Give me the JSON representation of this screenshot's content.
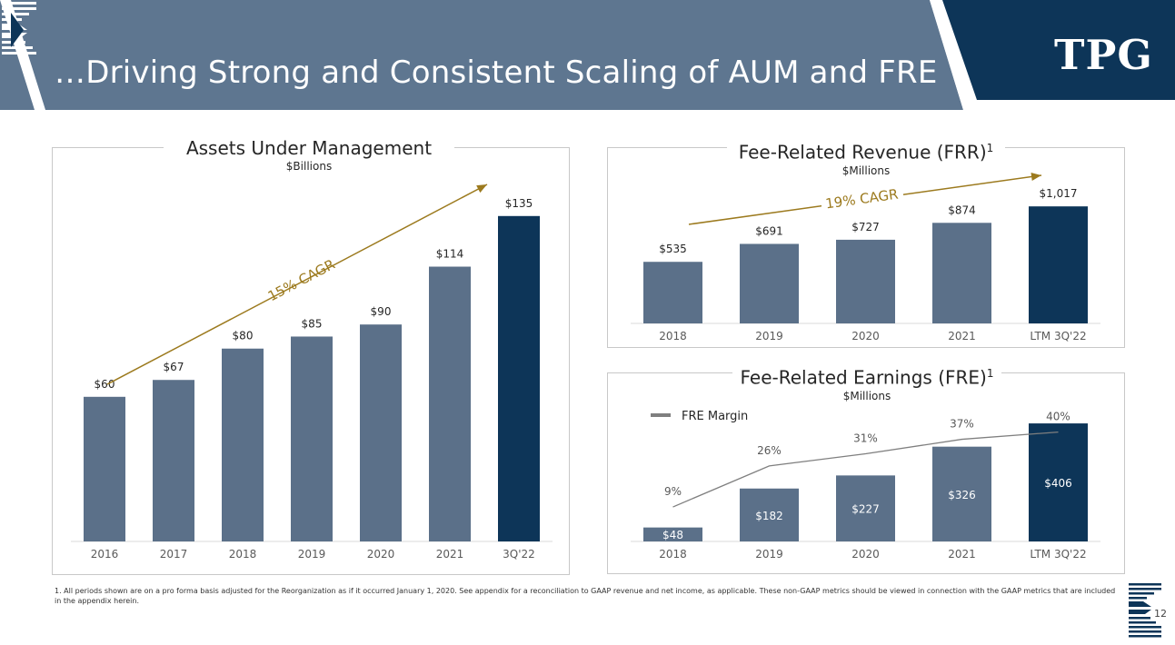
{
  "header": {
    "title": "…Driving Strong and Consistent Scaling of AUM and FRE",
    "logo_text": "TPG",
    "logo_icon": "tpg-logo-icon"
  },
  "colors": {
    "bar": "#5b7089",
    "bar_highlight": "#0d3558",
    "header_bg": "#5e7690",
    "logo_bg": "#0d3558",
    "cagr_arrow": "#9c7a1e",
    "margin_line": "#7f7f7f"
  },
  "aum": {
    "title": "Assets Under Management",
    "subtitle": "$Billions",
    "cagr_label": "15% CAGR"
  },
  "frr": {
    "title": "Fee-Related Revenue (FRR)",
    "title_sup": "1",
    "subtitle": "$Millions",
    "cagr_label": "19% CAGR"
  },
  "fre": {
    "title": "Fee-Related Earnings (FRE)",
    "title_sup": "1",
    "subtitle": "$Millions",
    "legend_label": "FRE Margin"
  },
  "chart_data": [
    {
      "type": "bar",
      "title": "Assets Under Management",
      "ylabel": "$Billions",
      "categories": [
        "2016",
        "2017",
        "2018",
        "2019",
        "2020",
        "2021",
        "3Q'22"
      ],
      "values": [
        60,
        67,
        80,
        85,
        90,
        114,
        135
      ],
      "labels": [
        "$60",
        "$67",
        "$80",
        "$85",
        "$90",
        "$114",
        "$135"
      ],
      "highlight_index": 6,
      "annotation": "15% CAGR",
      "ylim": [
        0,
        150
      ],
      "grid": false
    },
    {
      "type": "bar",
      "title": "Fee-Related Revenue (FRR)",
      "ylabel": "$Millions",
      "categories": [
        "2018",
        "2019",
        "2020",
        "2021",
        "LTM 3Q'22"
      ],
      "values": [
        535,
        691,
        727,
        874,
        1017
      ],
      "labels": [
        "$535",
        "$691",
        "$727",
        "$874",
        "$1,017"
      ],
      "highlight_index": 4,
      "annotation": "19% CAGR",
      "ylim": [
        0,
        1200
      ],
      "grid": false
    },
    {
      "type": "bar",
      "title": "Fee-Related Earnings (FRE)",
      "ylabel": "$Millions",
      "categories": [
        "2018",
        "2019",
        "2020",
        "2021",
        "LTM 3Q'22"
      ],
      "values": [
        48,
        182,
        227,
        326,
        406
      ],
      "labels": [
        "$48",
        "$182",
        "$227",
        "$326",
        "$406"
      ],
      "highlight_index": 4,
      "series": [
        {
          "name": "FRE Margin",
          "type": "line",
          "values": [
            9,
            26,
            31,
            37,
            40
          ],
          "labels": [
            "9%",
            "26%",
            "31%",
            "37%",
            "40%"
          ]
        }
      ],
      "ylim": [
        0,
        450
      ],
      "grid": false,
      "legend": "top-left"
    }
  ],
  "footnote": "1. All periods shown are on a pro forma basis adjusted for the Reorganization as if it occurred January 1, 2020. See appendix for a reconciliation to GAAP revenue and net income, as applicable. These non-GAAP metrics should be viewed in connection with the GAAP metrics that are included in the appendix herein.",
  "page_number": "12"
}
